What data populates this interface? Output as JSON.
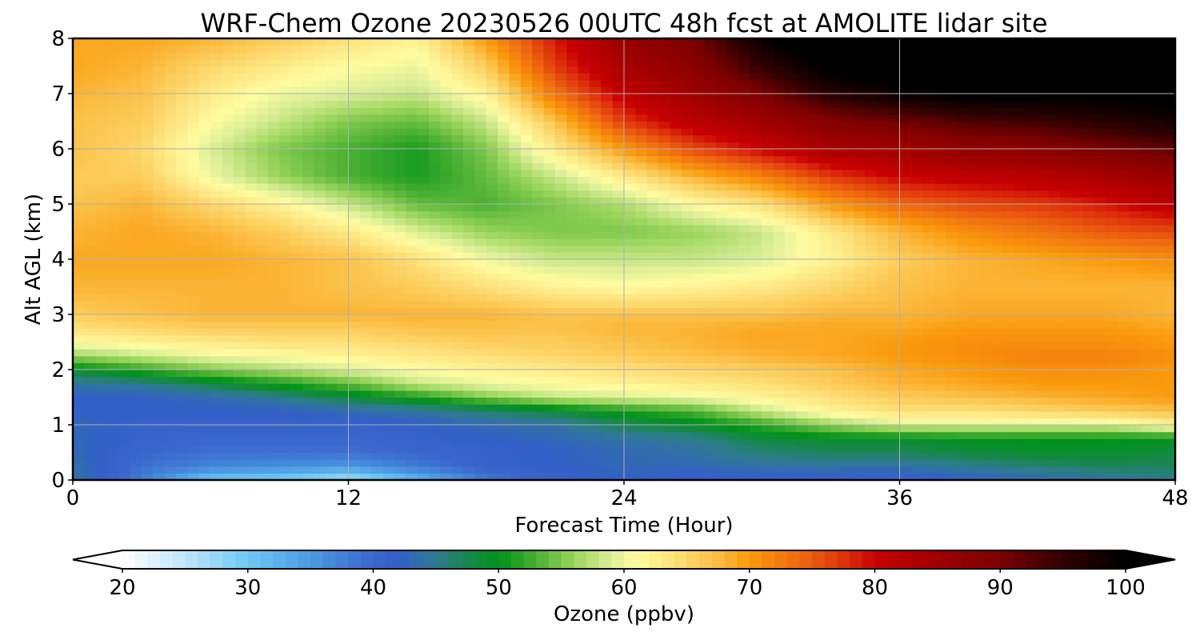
{
  "chart_data": {
    "type": "heatmap",
    "title": "WRF-Chem Ozone  20230526 00UTC 48h fcst at AMOLITE lidar site",
    "xlabel": "Forecast Time (Hour)",
    "ylabel": "Alt AGL (km)",
    "xlim": [
      0,
      48
    ],
    "ylim": [
      0,
      8
    ],
    "xticks": [
      "0",
      "12",
      "24",
      "36",
      "48"
    ],
    "yticks": [
      "0",
      "1",
      "2",
      "3",
      "4",
      "5",
      "6",
      "7",
      "8"
    ],
    "grid": true,
    "colorbar": {
      "label": "Ozone  (ppbv)",
      "range": [
        20,
        100
      ],
      "ticks": [
        "20",
        "30",
        "40",
        "50",
        "60",
        "70",
        "80",
        "90",
        "100"
      ],
      "extend": "both",
      "under_color": "#ffffff",
      "over_color": "#000000",
      "stops": [
        {
          "v": 20,
          "c": "#ffffff"
        },
        {
          "v": 25,
          "c": "#bfe5fa"
        },
        {
          "v": 30,
          "c": "#6ec8f5"
        },
        {
          "v": 35,
          "c": "#4a9ae2"
        },
        {
          "v": 40,
          "c": "#3a66cc"
        },
        {
          "v": 42,
          "c": "#3360c8"
        },
        {
          "v": 45,
          "c": "#2e7a90"
        },
        {
          "v": 48,
          "c": "#138a40"
        },
        {
          "v": 50,
          "c": "#00921a"
        },
        {
          "v": 53,
          "c": "#4ab032"
        },
        {
          "v": 56,
          "c": "#98d45a"
        },
        {
          "v": 59,
          "c": "#dcef98"
        },
        {
          "v": 61,
          "c": "#fffca0"
        },
        {
          "v": 64,
          "c": "#fde17a"
        },
        {
          "v": 67,
          "c": "#fbc24a"
        },
        {
          "v": 70,
          "c": "#fa9a0c"
        },
        {
          "v": 74,
          "c": "#ee6a10"
        },
        {
          "v": 78,
          "c": "#dc2a0a"
        },
        {
          "v": 80,
          "c": "#c80000"
        },
        {
          "v": 85,
          "c": "#a00000"
        },
        {
          "v": 90,
          "c": "#7c0000"
        },
        {
          "v": 95,
          "c": "#300000"
        },
        {
          "v": 100,
          "c": "#000000"
        }
      ]
    },
    "hours": [
      0,
      3,
      6,
      9,
      12,
      15,
      18,
      21,
      24,
      27,
      30,
      33,
      36,
      39,
      42,
      45,
      48
    ],
    "altitudes": [
      0,
      0.25,
      0.5,
      0.75,
      1,
      1.25,
      1.5,
      1.75,
      2,
      2.25,
      2.5,
      2.75,
      3,
      3.5,
      4,
      4.5,
      5,
      5.5,
      6,
      6.5,
      7,
      7.5,
      8
    ],
    "values": [
      [
        44,
        38,
        30,
        29,
        26,
        32,
        38,
        41,
        42,
        41,
        41,
        41,
        40,
        42,
        43,
        44,
        45
      ],
      [
        44,
        39,
        37,
        36,
        35,
        38,
        41,
        42,
        43,
        43,
        44,
        44,
        44,
        45,
        46,
        47,
        47
      ],
      [
        43,
        40,
        39,
        39,
        39,
        40,
        41,
        42,
        43,
        44,
        46,
        47,
        47,
        48,
        49,
        49,
        48
      ],
      [
        43,
        41,
        40,
        40,
        40,
        41,
        42,
        43,
        44,
        45,
        48,
        49,
        49,
        50,
        50,
        50,
        50
      ],
      [
        43,
        41,
        41,
        41,
        41,
        42,
        43,
        44,
        47,
        49,
        52,
        56,
        59,
        59,
        59,
        59,
        62
      ],
      [
        42,
        42,
        42,
        42,
        43,
        44,
        46,
        48,
        51,
        53,
        58,
        62,
        64,
        64,
        65,
        66,
        67
      ],
      [
        42,
        42,
        43,
        45,
        48,
        51,
        55,
        58,
        59,
        60,
        62,
        64,
        66,
        67,
        68,
        69,
        70
      ],
      [
        44,
        45,
        48,
        51,
        54,
        58,
        60,
        61,
        62,
        63,
        64,
        66,
        68,
        69,
        70,
        70,
        70
      ],
      [
        49,
        52,
        55,
        57,
        59,
        61,
        62,
        63,
        64,
        65,
        66,
        67,
        69,
        70,
        71,
        71,
        70
      ],
      [
        56,
        58,
        60,
        61,
        62,
        63,
        64,
        65,
        66,
        67,
        68,
        69,
        70,
        71,
        72,
        72,
        71
      ],
      [
        61,
        62,
        63,
        64,
        64,
        65,
        66,
        66,
        67,
        68,
        69,
        69,
        70,
        71,
        71,
        71,
        70
      ],
      [
        64,
        65,
        66,
        66,
        66,
        67,
        67,
        67,
        68,
        68,
        69,
        69,
        69,
        70,
        70,
        70,
        69
      ],
      [
        66,
        67,
        68,
        68,
        68,
        68,
        68,
        67,
        67,
        67,
        67,
        68,
        68,
        69,
        69,
        69,
        68
      ],
      [
        68,
        68,
        68,
        68,
        67,
        66,
        64,
        62,
        61,
        62,
        63,
        65,
        67,
        68,
        68,
        68,
        68
      ],
      [
        69,
        69,
        69,
        68,
        67,
        64,
        60,
        58,
        58,
        58,
        59,
        62,
        66,
        68,
        69,
        70,
        71
      ],
      [
        68,
        69,
        68,
        66,
        63,
        59,
        56,
        55,
        55,
        56,
        58,
        63,
        68,
        71,
        73,
        75,
        76
      ],
      [
        67,
        68,
        65,
        62,
        58,
        54,
        53,
        55,
        57,
        61,
        64,
        70,
        74,
        76,
        77,
        79,
        82
      ],
      [
        66,
        66,
        60,
        56,
        53,
        51,
        54,
        58,
        63,
        68,
        72,
        77,
        80,
        81,
        82,
        84,
        86
      ],
      [
        67,
        65,
        59,
        55,
        53,
        51,
        55,
        63,
        70,
        76,
        80,
        84,
        85,
        87,
        88,
        90,
        92
      ],
      [
        67,
        66,
        61,
        58,
        55,
        54,
        58,
        67,
        77,
        82,
        85,
        89,
        91,
        93,
        94,
        96,
        98
      ],
      [
        68,
        67,
        63,
        60,
        59,
        58,
        62,
        73,
        81,
        85,
        90,
        96,
        99,
        101,
        101,
        101,
        101
      ],
      [
        69,
        68,
        65,
        63,
        61,
        60,
        66,
        77,
        84,
        88,
        95,
        101,
        103,
        104,
        104,
        104,
        104
      ],
      [
        69,
        69,
        68,
        66,
        64,
        62,
        70,
        79,
        86,
        90,
        99,
        104,
        105,
        106,
        106,
        106,
        106
      ]
    ]
  }
}
